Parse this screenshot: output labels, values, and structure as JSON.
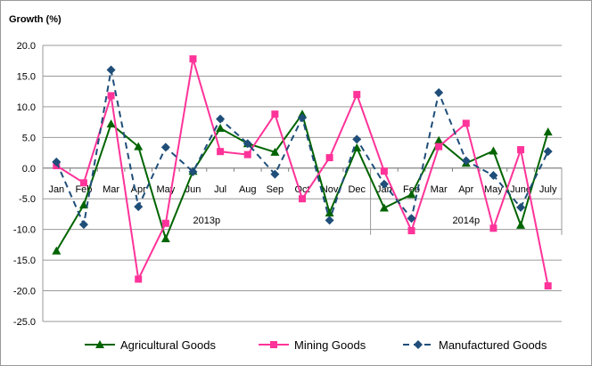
{
  "chart_data": {
    "type": "line",
    "ylabel": "Growth (%)",
    "ylim": [
      -25,
      20
    ],
    "ytick_step": 5,
    "grid": "horizontal",
    "legend_position": "bottom",
    "categories": [
      "Jan",
      "Feb",
      "Mar",
      "Apr",
      "May",
      "Jun",
      "Jul",
      "Aug",
      "Sep",
      "Oct",
      "Nov",
      "Dec",
      "Jan",
      "Feb",
      "Mar",
      "Apr",
      "May",
      "June",
      "July"
    ],
    "groups": [
      {
        "label": "2013p",
        "start": 0,
        "end": 11
      },
      {
        "label": "2014p",
        "start": 12,
        "end": 18
      }
    ],
    "series": [
      {
        "name": "Agricultural Goods",
        "color": "#006400",
        "marker": "triangle",
        "dash": "solid",
        "values": [
          -13.5,
          -6.0,
          7.2,
          3.5,
          -11.5,
          -0.5,
          6.5,
          4.0,
          2.6,
          8.8,
          -7.3,
          3.3,
          -6.5,
          -4.3,
          4.5,
          0.8,
          2.8,
          -9.3,
          5.9
        ]
      },
      {
        "name": "Mining Goods",
        "color": "#ff3399",
        "marker": "square",
        "dash": "solid",
        "values": [
          0.4,
          -2.4,
          11.8,
          -18.1,
          -9.0,
          17.8,
          2.7,
          2.2,
          8.8,
          -5.0,
          1.7,
          12.0,
          -0.5,
          -10.2,
          3.5,
          7.3,
          -9.8,
          3.0,
          -19.2
        ]
      },
      {
        "name": "Manufactured Goods",
        "color": "#1f4e79",
        "marker": "diamond",
        "dash": "dashed",
        "values": [
          1.0,
          -9.2,
          16.0,
          -6.3,
          3.4,
          -0.6,
          8.0,
          4.0,
          -1.0,
          8.2,
          -8.5,
          4.7,
          -2.6,
          -8.2,
          12.3,
          1.2,
          -1.2,
          -6.4,
          2.7
        ]
      }
    ]
  }
}
